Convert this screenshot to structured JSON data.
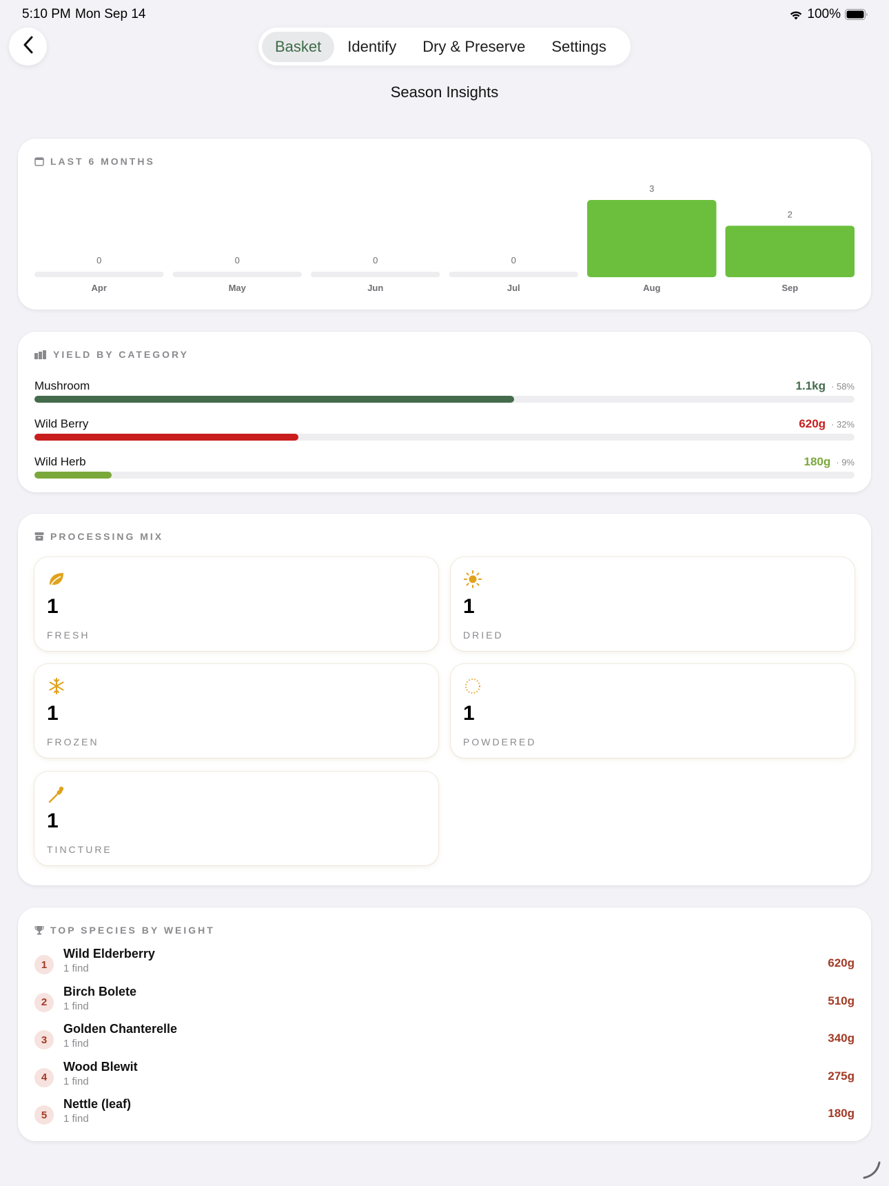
{
  "status_bar": {
    "time": "5:10 PM",
    "date": "Mon Sep 14",
    "battery": "100%"
  },
  "nav": {
    "tabs": [
      {
        "label": "Basket",
        "active": true
      },
      {
        "label": "Identify",
        "active": false
      },
      {
        "label": "Dry & Preserve",
        "active": false
      },
      {
        "label": "Settings",
        "active": false
      }
    ]
  },
  "page_title": "Season Insights",
  "months_card": {
    "header": "LAST 6 MONTHS",
    "icon": "calendar-icon"
  },
  "chart_data": {
    "type": "bar",
    "categories": [
      "Apr",
      "May",
      "Jun",
      "Jul",
      "Aug",
      "Sep"
    ],
    "values": [
      0,
      0,
      0,
      0,
      3,
      2
    ],
    "bar_color": "#6cbf3d",
    "track_color": "#eeeef0"
  },
  "yield_card": {
    "header": "YIELD BY CATEGORY",
    "icon": "bar-chart-icon",
    "rows": [
      {
        "name": "Mushroom",
        "value": "1.1kg",
        "pct": "· 58%",
        "fraction": 0.585,
        "color": "#436b4c"
      },
      {
        "name": "Wild Berry",
        "value": "620g",
        "pct": "· 32%",
        "fraction": 0.322,
        "color": "#c81e1e"
      },
      {
        "name": "Wild Herb",
        "value": "180g",
        "pct": "· 9%",
        "fraction": 0.094,
        "color": "#7aa83a"
      }
    ]
  },
  "processing_card": {
    "header": "PROCESSING MIX",
    "icon": "archive-box-icon",
    "tiles": [
      {
        "count": "1",
        "label": "FRESH",
        "icon": "leaf-icon"
      },
      {
        "count": "1",
        "label": "DRIED",
        "icon": "sun-icon"
      },
      {
        "count": "1",
        "label": "FROZEN",
        "icon": "snowflake-icon"
      },
      {
        "count": "1",
        "label": "POWDERED",
        "icon": "dotted-circle-icon"
      },
      {
        "count": "1",
        "label": "TINCTURE",
        "icon": "dropper-icon"
      }
    ],
    "icon_color": "#e0a21c"
  },
  "species_card": {
    "header": "TOP SPECIES BY WEIGHT",
    "icon": "trophy-icon",
    "rows": [
      {
        "rank": "1",
        "name": "Wild Elderberry",
        "sub": "1 find",
        "weight": "620g"
      },
      {
        "rank": "2",
        "name": "Birch Bolete",
        "sub": "1 find",
        "weight": "510g"
      },
      {
        "rank": "3",
        "name": "Golden Chanterelle",
        "sub": "1 find",
        "weight": "340g"
      },
      {
        "rank": "4",
        "name": "Wood Blewit",
        "sub": "1 find",
        "weight": "275g"
      },
      {
        "rank": "5",
        "name": "Nettle (leaf)",
        "sub": "1 find",
        "weight": "180g"
      }
    ]
  }
}
